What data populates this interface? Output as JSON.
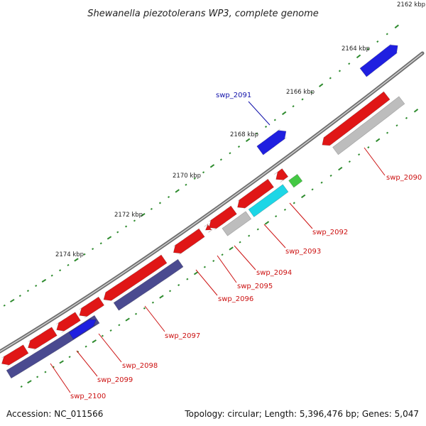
{
  "title": "Shewanella piezotolerans WP3, complete genome",
  "accession": "Accession: NC_011566",
  "topology": "Topology: circular; Length: 5,396,476 bp; Genes: 5,047",
  "colors": {
    "backbone": "#8c8c8c",
    "tick": "#2e8b2e",
    "forward": "#1f1fe0",
    "reverse": "#e01616",
    "rna": "#1dd6e6",
    "grey": "#bdbdbd",
    "navy": "#4a4a90",
    "green": "#44c844",
    "label_red": "#cc1111",
    "label_blue": "#1111aa"
  },
  "kbp_labels": [
    "2162 kbp",
    "2164 kbp",
    "2166 kbp",
    "2168 kbp",
    "2170 kbp",
    "2172 kbp",
    "2174 kbp"
  ],
  "gene_labels": [
    "swp_2090",
    "swp_2091",
    "swp_2092",
    "swp_2093",
    "swp_2094",
    "swp_2095",
    "swp_2096",
    "swp_2097",
    "swp_2098",
    "swp_2099",
    "swp_2100"
  ]
}
